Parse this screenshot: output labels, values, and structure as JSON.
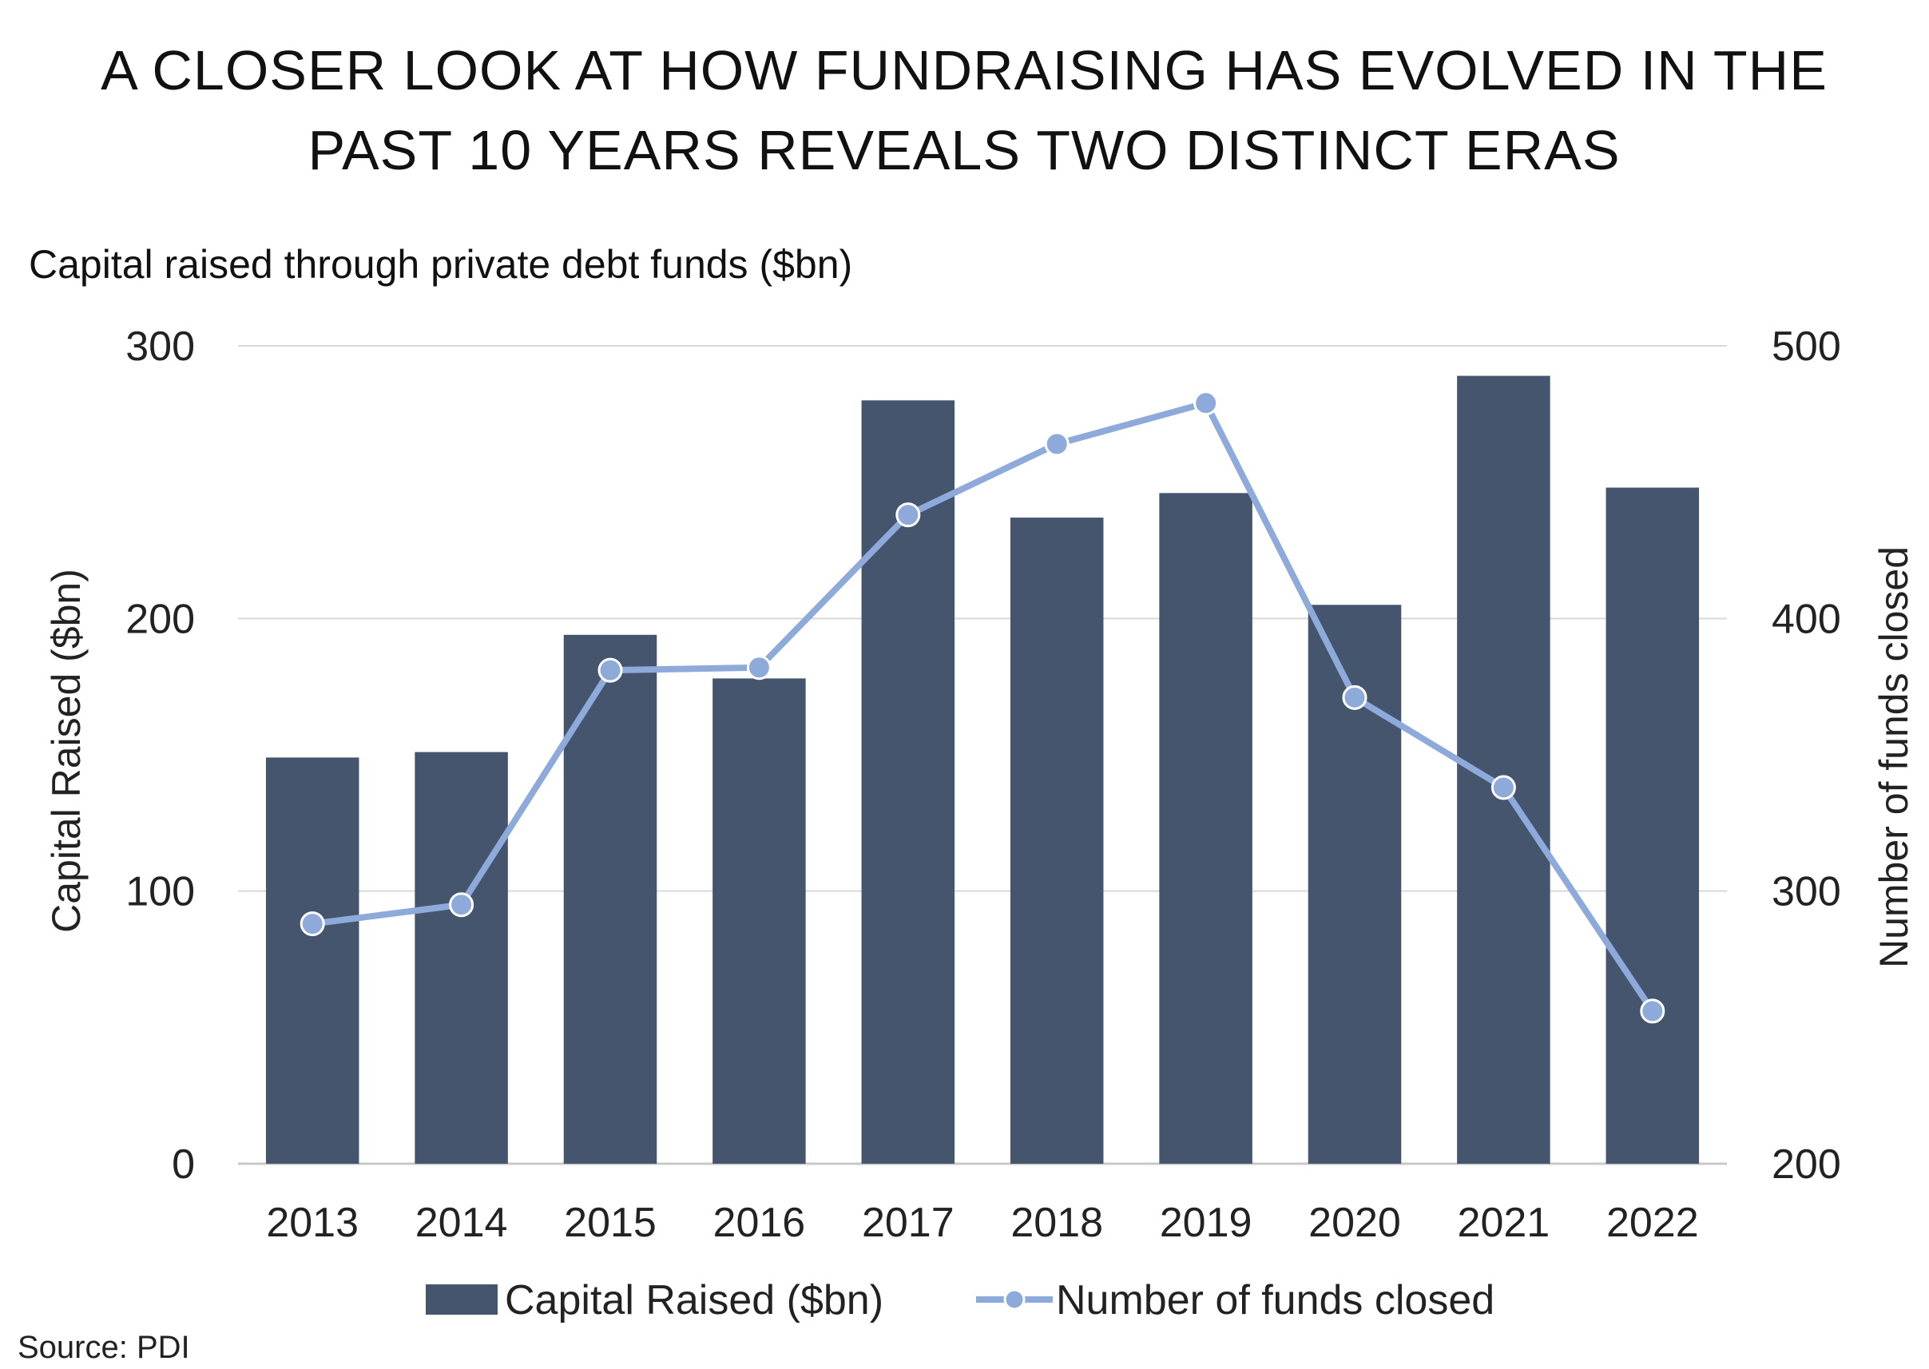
{
  "chart_data": {
    "type": "bar",
    "title_lines": [
      "A CLOSER LOOK AT HOW FUNDRAISING HAS EVOLVED IN THE",
      "PAST 10 YEARS REVEALS TWO DISTINCT ERAS"
    ],
    "subtitle": "Capital raised through private debt funds ($bn)",
    "categories": [
      "2013",
      "2014",
      "2015",
      "2016",
      "2017",
      "2018",
      "2019",
      "2020",
      "2021",
      "2022"
    ],
    "series": [
      {
        "name": "Capital Raised ($bn)",
        "type": "bar",
        "axis": "left",
        "color": "#46556e",
        "values": [
          149,
          151,
          194,
          178,
          280,
          237,
          246,
          205,
          289,
          248
        ]
      },
      {
        "name": "Number of funds closed",
        "type": "line",
        "axis": "right",
        "color": "#8eaadb",
        "values": [
          288,
          295,
          381,
          382,
          438,
          464,
          479,
          371,
          338,
          256
        ]
      }
    ],
    "ylabel_left": "Capital Raised ($bn)",
    "ylabel_right": "Number of funds closed",
    "ylim_left": [
      0,
      300
    ],
    "ylim_right": [
      200,
      500
    ],
    "yticks_left": [
      "0",
      "100",
      "200",
      "300"
    ],
    "yticks_right": [
      "200",
      "300",
      "400",
      "500"
    ],
    "grid": true,
    "legend_position": "bottom",
    "source": "Source: PDI"
  }
}
